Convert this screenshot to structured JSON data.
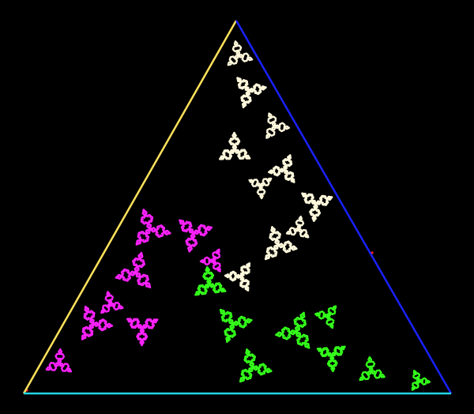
{
  "figure": {
    "kind": "fractal-in-triangle",
    "background": "#000000",
    "edges": {
      "left": "#ffe25a",
      "right": "#1a22ff",
      "bottom": "#22d6e6"
    },
    "fractal_regions": [
      {
        "name": "top",
        "color": "#fff8dc"
      },
      {
        "name": "left",
        "color": "#ff22ff"
      },
      {
        "name": "right",
        "color": "#33ff1a"
      }
    ],
    "accent_dots": "#ff2222"
  }
}
